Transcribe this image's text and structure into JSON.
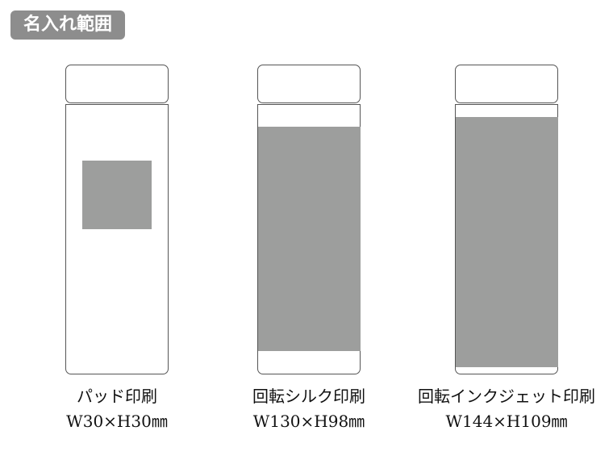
{
  "title": "名入れ範囲",
  "area_color": "#9d9e9d",
  "items": [
    {
      "method": "パッド印刷",
      "size": "W30×H30㎜"
    },
    {
      "method": "回転シルク印刷",
      "size": "W130×H98㎜"
    },
    {
      "method": "回転インクジェット印刷",
      "size": "W144×H109㎜"
    }
  ]
}
